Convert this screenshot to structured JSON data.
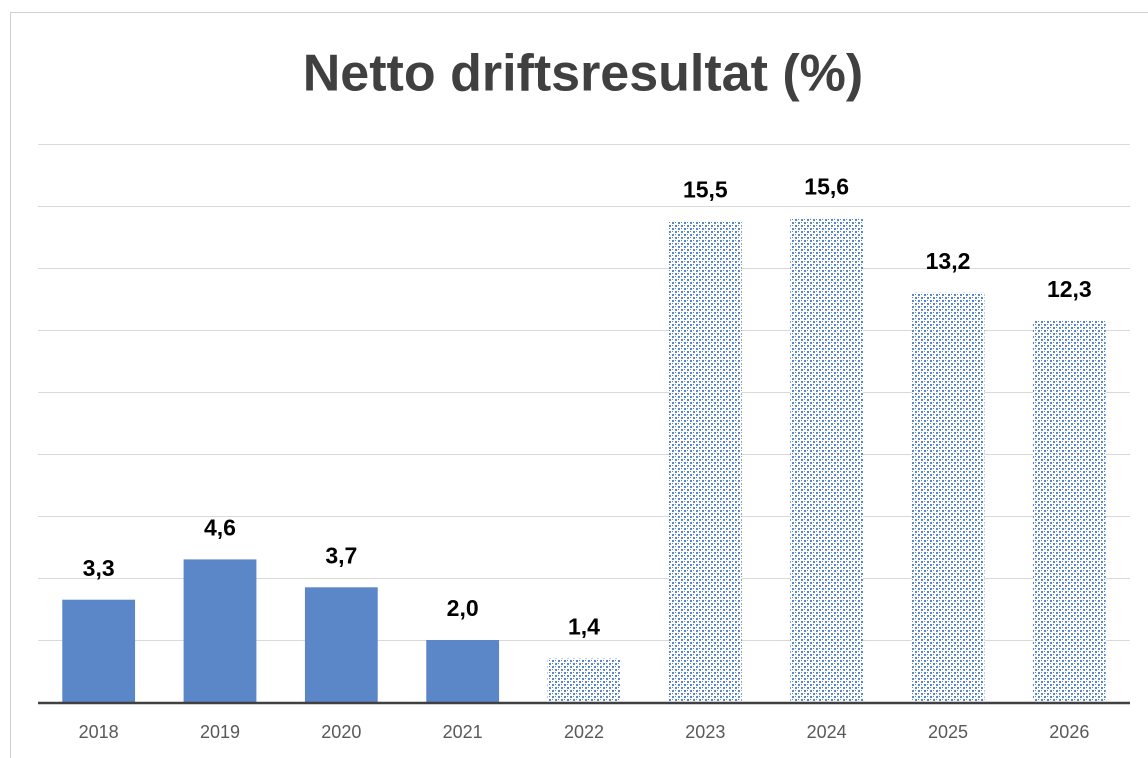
{
  "chart_data": {
    "type": "bar",
    "title": "Netto driftsresultat (%)",
    "categories": [
      "2018",
      "2019",
      "2020",
      "2021",
      "2022",
      "2023",
      "2024",
      "2025",
      "2026"
    ],
    "values": [
      3.3,
      4.6,
      3.7,
      2.0,
      1.4,
      15.5,
      15.6,
      13.2,
      12.3
    ],
    "value_labels": [
      "3,3",
      "4,6",
      "3,7",
      "2,0",
      "1,4",
      "15,5",
      "15,6",
      "13,2",
      "12,3"
    ],
    "bar_styles": [
      "solid",
      "solid",
      "solid",
      "solid",
      "pattern",
      "pattern",
      "pattern",
      "pattern",
      "pattern"
    ],
    "color": "#5b87c9",
    "ylim": [
      0,
      18
    ],
    "yticks": [
      0,
      2,
      4,
      6,
      8,
      10,
      12,
      14,
      16,
      18
    ],
    "show_ytick_labels": false,
    "grid": true
  }
}
